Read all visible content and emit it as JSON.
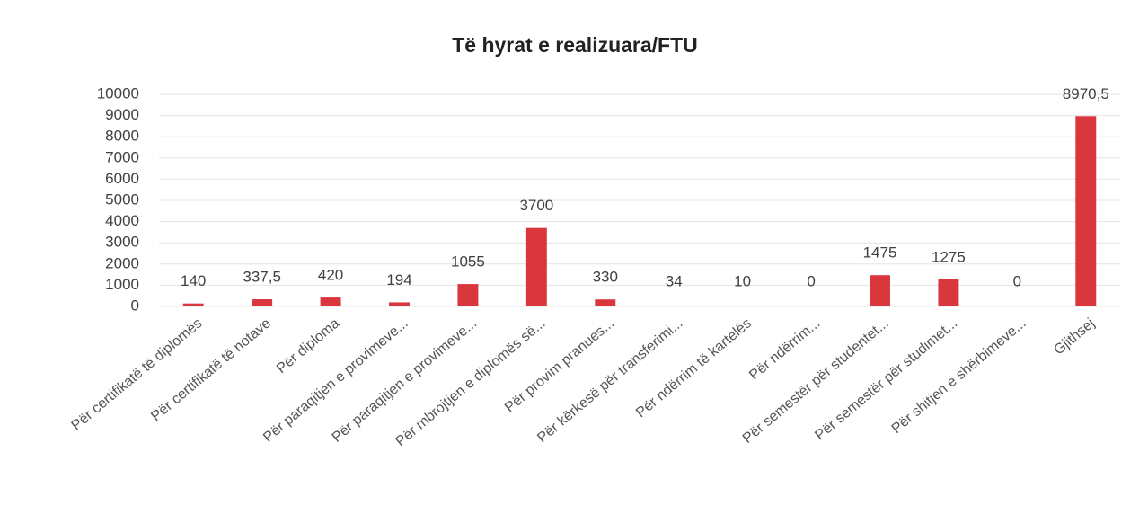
{
  "chart_data": {
    "type": "bar",
    "title": "Të hyrat e realizuara/FTU",
    "categories": [
      "Për certifikatë të diplomës",
      "Për certifikatë të notave",
      "Për diploma",
      "Për paraqitjen e provimeve...",
      "Për paraqitjen e provimeve...",
      "Për mbrojtjen e diplomës së...",
      "Për provim pranues...",
      "Për kërkesë për transferimi...",
      "Për ndërrim të kartelës",
      "Për ndërrim...",
      "Për semestër për studentet...",
      "Për semestër për studimet...",
      "Për shitjen e shërbimeve...",
      "Gjithsej"
    ],
    "values": [
      140,
      337.5,
      420,
      194,
      1055,
      3700,
      330,
      34,
      10,
      0,
      1475,
      1275,
      0,
      8970.5
    ],
    "value_labels": [
      "140",
      "337,5",
      "420",
      "194",
      "1055",
      "3700",
      "330",
      "34",
      "10",
      "0",
      "1475",
      "1275",
      "0",
      "8970,5"
    ],
    "color": "#d9363e",
    "ylim": [
      0,
      10000
    ],
    "yticks": [
      0,
      1000,
      2000,
      3000,
      4000,
      5000,
      6000,
      7000,
      8000,
      9000,
      10000
    ],
    "grid": true
  }
}
